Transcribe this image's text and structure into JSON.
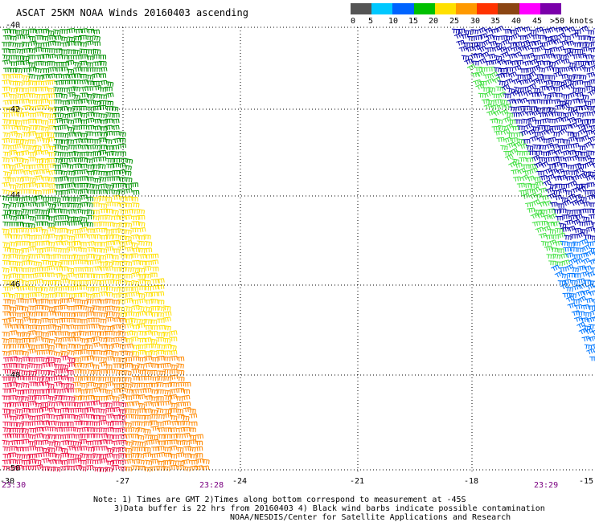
{
  "title": "ASCAT 25KM NOAA Winds 20160403 ascending",
  "legend": {
    "labels": [
      "0",
      "5",
      "10",
      "15",
      "20",
      "25",
      "30",
      "35",
      "40",
      "45",
      ">50 knots"
    ],
    "colors": [
      "#555555",
      "#00c8ff",
      "#0064ff",
      "#00c000",
      "#ffe000",
      "#ff9900",
      "#ff3300",
      "#8b4513",
      "#ff00ff",
      "#7a00aa"
    ]
  },
  "colors": {
    "grid": "#000000",
    "time_label": "#7a0080",
    "barb_darkgreen": "#009000",
    "barb_green": "#40e040",
    "barb_yellow": "#ffe000",
    "barb_orange": "#ff8800",
    "barb_red": "#ee1144",
    "barb_darkblue": "#0000aa",
    "barb_blue": "#0077ff"
  },
  "axes": {
    "lat_labels": [
      "-40",
      "-42",
      "-44",
      "-46",
      "-48",
      "-50"
    ],
    "lon_labels": [
      "-30",
      "-27",
      "-24",
      "-21",
      "-18",
      "-15"
    ]
  },
  "times": [
    "23:30",
    "23:28",
    "23:29"
  ],
  "notes": {
    "line1": "Note: 1) Times are GMT 2)Times along bottom correspond to measurement at -45S",
    "line2": "3)Data buffer is 22 hrs from 20160403 4) Black wind barbs indicate possible contamination",
    "line3": "NOAA/NESDIS/Center for Satellite Applications and Research"
  }
}
